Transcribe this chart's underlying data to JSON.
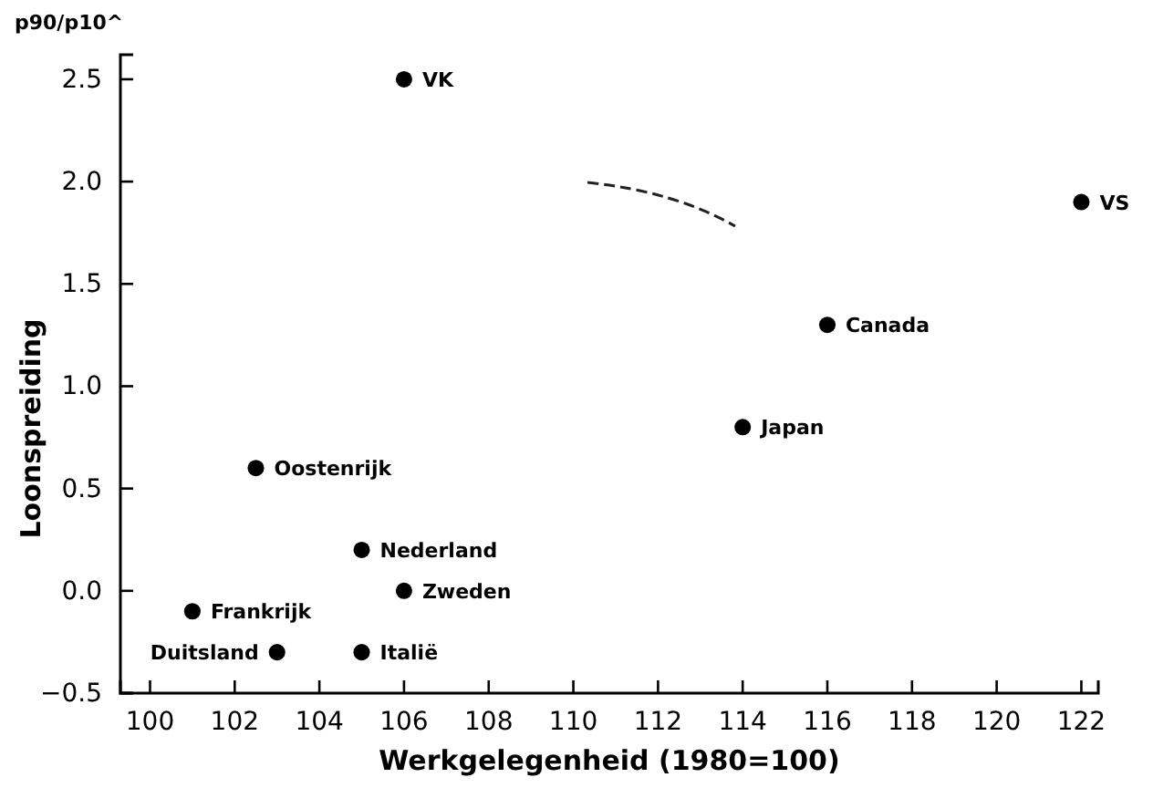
{
  "chart_data": {
    "type": "scatter",
    "xlabel": "Werkgelegenheid (1980=100)",
    "ylabel": "Loonspreiding",
    "annotations": [
      "p90/p10^"
    ],
    "marker": "circle",
    "grid": false,
    "legend": false,
    "xlim": [
      99.3,
      122.4
    ],
    "xticks": [
      100,
      102,
      104,
      106,
      108,
      110,
      112,
      114,
      116,
      118,
      120,
      122
    ],
    "ylim": [
      -0.5,
      2.62
    ],
    "yticks": [
      -0.5,
      {
        "value": 0,
        "label": "0.0"
      },
      0.5,
      {
        "value": 1,
        "label": "1.0"
      },
      1.5,
      {
        "value": 2,
        "label": "2.0"
      },
      2.5
    ],
    "series": [
      {
        "name": "VK",
        "color": "#000000",
        "x": [
          106
        ],
        "values": [
          2.5
        ]
      },
      {
        "name": "VS",
        "color": "#000000",
        "x": [
          122
        ],
        "values": [
          1.9
        ]
      },
      {
        "name": "Canada",
        "color": "#000000",
        "x": [
          116
        ],
        "values": [
          1.3
        ]
      },
      {
        "name": "Japan",
        "color": "#000000",
        "x": [
          114
        ],
        "values": [
          0.8
        ]
      },
      {
        "name": "Oostenrijk",
        "color": "#000000",
        "x": [
          102.5
        ],
        "values": [
          0.6
        ]
      },
      {
        "name": "Nederland",
        "color": "#000000",
        "x": [
          105
        ],
        "values": [
          0.2
        ]
      },
      {
        "name": "Zweden",
        "color": "#000000",
        "x": [
          106
        ],
        "values": [
          0.0
        ]
      },
      {
        "name": "Frankrijk",
        "color": "#000000",
        "x": [
          101
        ],
        "values": [
          -0.1
        ]
      },
      {
        "name": "Duitsland",
        "color": "#000000",
        "x": [
          103
        ],
        "values": [
          -0.3
        ]
      },
      {
        "name": "Italië",
        "color": "#000000",
        "x": [
          105
        ],
        "values": [
          -0.3
        ]
      }
    ]
  }
}
